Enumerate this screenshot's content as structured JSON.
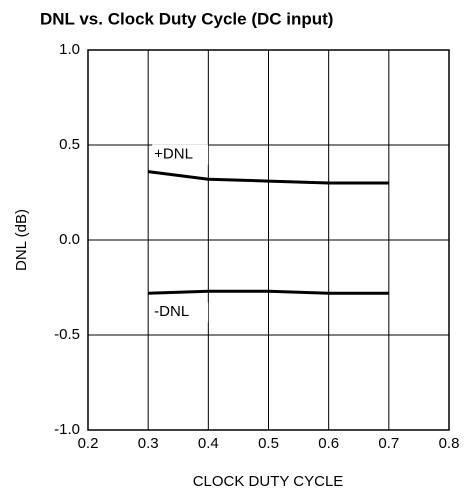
{
  "chart_data": {
    "type": "line",
    "title": "DNL vs. Clock Duty Cycle (DC input)",
    "xlabel": "CLOCK DUTY CYCLE",
    "ylabel": "DNL (dB)",
    "x": [
      0.3,
      0.4,
      0.5,
      0.6,
      0.7
    ],
    "series": [
      {
        "name": "+DNL",
        "color": "#000000",
        "values": [
          0.36,
          0.32,
          0.31,
          0.3,
          0.3
        ]
      },
      {
        "name": "-DNL",
        "color": "#000000",
        "values": [
          -0.28,
          -0.27,
          -0.27,
          -0.28,
          -0.28
        ]
      }
    ],
    "xlim": [
      0.2,
      0.8
    ],
    "xticks": [
      0.2,
      0.3,
      0.4,
      0.5,
      0.6,
      0.7,
      0.8
    ],
    "ylim": [
      -1.0,
      1.0
    ],
    "yticks": [
      {
        "value": 1.0,
        "label": "1.0"
      },
      {
        "value": 0.5,
        "label": "0.5"
      },
      {
        "value": 0,
        "label": "0.0"
      },
      {
        "value": -0.5,
        "label": "-0.5"
      },
      {
        "value": -1.0,
        "label": "-1.0"
      }
    ],
    "grid": true
  }
}
